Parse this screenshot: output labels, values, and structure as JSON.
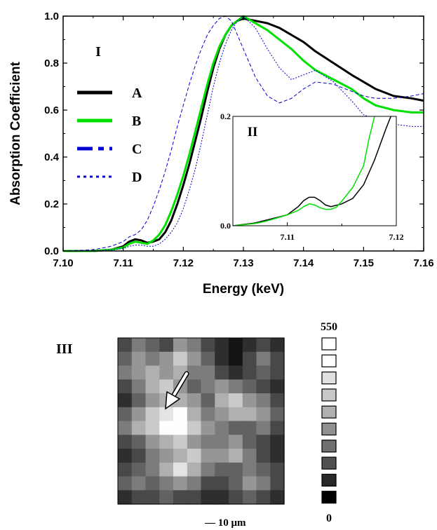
{
  "chart_data": [
    {
      "type": "line",
      "xlabel": "Energy (keV)",
      "ylabel": "Absorption Coefficient",
      "xlim": [
        7.1,
        7.16
      ],
      "ylim": [
        0.0,
        1.0
      ],
      "xticks": [
        7.1,
        7.11,
        7.12,
        7.13,
        7.14,
        7.15,
        7.16
      ],
      "yticks": [
        0.0,
        0.2,
        0.4,
        0.6,
        0.8,
        1.0
      ],
      "xtick_labels": [
        "7.10",
        "7.11",
        "7.12",
        "7.13",
        "7.14",
        "7.15",
        "7.16"
      ],
      "ytick_labels": [
        "0.0",
        "0.2",
        "0.4",
        "0.6",
        "0.8",
        "1.0"
      ],
      "panel_label": "I",
      "legend_position": "left",
      "series": [
        {
          "name": "A",
          "color": "#000000",
          "style": "solid-thick",
          "x": [
            7.1,
            7.105,
            7.108,
            7.11,
            7.111,
            7.112,
            7.113,
            7.114,
            7.115,
            7.116,
            7.117,
            7.118,
            7.119,
            7.12,
            7.121,
            7.122,
            7.123,
            7.124,
            7.125,
            7.126,
            7.127,
            7.128,
            7.129,
            7.13,
            7.132,
            7.134,
            7.136,
            7.138,
            7.14,
            7.142,
            7.145,
            7.148,
            7.15,
            7.152,
            7.155,
            7.158,
            7.16
          ],
          "y": [
            0.0,
            0.0,
            0.005,
            0.02,
            0.04,
            0.05,
            0.045,
            0.035,
            0.04,
            0.05,
            0.08,
            0.13,
            0.2,
            0.28,
            0.37,
            0.47,
            0.57,
            0.68,
            0.78,
            0.86,
            0.92,
            0.96,
            0.98,
            0.99,
            0.98,
            0.97,
            0.95,
            0.92,
            0.89,
            0.85,
            0.8,
            0.75,
            0.72,
            0.69,
            0.66,
            0.65,
            0.64
          ]
        },
        {
          "name": "B",
          "color": "#00e000",
          "style": "solid-thick",
          "x": [
            7.1,
            7.105,
            7.108,
            7.11,
            7.111,
            7.112,
            7.113,
            7.114,
            7.115,
            7.116,
            7.117,
            7.118,
            7.119,
            7.12,
            7.121,
            7.122,
            7.123,
            7.124,
            7.125,
            7.126,
            7.127,
            7.128,
            7.129,
            7.13,
            7.132,
            7.134,
            7.136,
            7.138,
            7.14,
            7.142,
            7.145,
            7.148,
            7.15,
            7.152,
            7.155,
            7.158,
            7.16
          ],
          "y": [
            0.0,
            0.0,
            0.005,
            0.015,
            0.03,
            0.04,
            0.035,
            0.03,
            0.045,
            0.07,
            0.11,
            0.17,
            0.24,
            0.32,
            0.41,
            0.51,
            0.61,
            0.71,
            0.8,
            0.87,
            0.92,
            0.96,
            0.98,
            1.0,
            0.97,
            0.94,
            0.9,
            0.86,
            0.81,
            0.77,
            0.73,
            0.69,
            0.65,
            0.62,
            0.6,
            0.59,
            0.59
          ]
        },
        {
          "name": "C",
          "color": "#0000d0",
          "style": "dash",
          "x": [
            7.1,
            7.105,
            7.108,
            7.11,
            7.111,
            7.112,
            7.113,
            7.114,
            7.115,
            7.116,
            7.117,
            7.118,
            7.119,
            7.12,
            7.121,
            7.122,
            7.123,
            7.124,
            7.125,
            7.126,
            7.127,
            7.128,
            7.13,
            7.132,
            7.134,
            7.136,
            7.138,
            7.14,
            7.142,
            7.145,
            7.148,
            7.15,
            7.152,
            7.155,
            7.158,
            7.16
          ],
          "y": [
            0.0,
            0.005,
            0.02,
            0.04,
            0.06,
            0.07,
            0.09,
            0.13,
            0.19,
            0.26,
            0.34,
            0.43,
            0.53,
            0.62,
            0.71,
            0.79,
            0.86,
            0.92,
            0.96,
            0.99,
            1.0,
            0.98,
            0.86,
            0.74,
            0.66,
            0.63,
            0.65,
            0.69,
            0.72,
            0.71,
            0.68,
            0.66,
            0.65,
            0.65,
            0.66,
            0.67
          ]
        },
        {
          "name": "D",
          "color": "#0000d0",
          "style": "dot",
          "x": [
            7.1,
            7.105,
            7.108,
            7.11,
            7.111,
            7.112,
            7.113,
            7.114,
            7.115,
            7.116,
            7.117,
            7.118,
            7.119,
            7.12,
            7.121,
            7.122,
            7.123,
            7.124,
            7.125,
            7.126,
            7.127,
            7.128,
            7.129,
            7.13,
            7.132,
            7.134,
            7.136,
            7.138,
            7.14,
            7.142,
            7.145,
            7.148,
            7.15,
            7.152,
            7.155,
            7.158,
            7.16
          ],
          "y": [
            0.0,
            0.0,
            0.005,
            0.01,
            0.02,
            0.025,
            0.025,
            0.02,
            0.02,
            0.03,
            0.05,
            0.08,
            0.12,
            0.18,
            0.26,
            0.35,
            0.46,
            0.58,
            0.7,
            0.8,
            0.88,
            0.94,
            0.98,
            1.0,
            0.95,
            0.86,
            0.78,
            0.73,
            0.75,
            0.77,
            0.72,
            0.64,
            0.58,
            0.56,
            0.54,
            0.53,
            0.53
          ]
        }
      ]
    },
    {
      "type": "line",
      "panel_label": "II",
      "xlim": [
        7.105,
        7.12
      ],
      "ylim": [
        0.0,
        0.2
      ],
      "xticks": [
        7.11,
        7.12
      ],
      "yticks": [
        0.0,
        0.2
      ],
      "xtick_labels": [
        "7.11",
        "7.12"
      ],
      "ytick_labels": [
        "0.0",
        "0.2"
      ],
      "series": [
        {
          "name": "A",
          "color": "#000000",
          "x": [
            7.105,
            7.107,
            7.108,
            7.109,
            7.11,
            7.111,
            7.1115,
            7.112,
            7.1125,
            7.113,
            7.1135,
            7.114,
            7.115,
            7.116,
            7.117,
            7.118,
            7.119,
            7.1195
          ],
          "y": [
            0.0,
            0.005,
            0.01,
            0.015,
            0.02,
            0.035,
            0.046,
            0.052,
            0.052,
            0.046,
            0.038,
            0.035,
            0.04,
            0.05,
            0.075,
            0.12,
            0.175,
            0.2
          ]
        },
        {
          "name": "B",
          "color": "#00e000",
          "x": [
            7.105,
            7.107,
            7.108,
            7.109,
            7.11,
            7.111,
            7.1115,
            7.112,
            7.1125,
            7.113,
            7.1135,
            7.114,
            7.1145,
            7.115,
            7.116,
            7.117,
            7.1175,
            7.118
          ],
          "y": [
            0.0,
            0.004,
            0.008,
            0.014,
            0.02,
            0.028,
            0.035,
            0.04,
            0.038,
            0.033,
            0.03,
            0.03,
            0.034,
            0.045,
            0.07,
            0.11,
            0.16,
            0.2
          ]
        }
      ]
    },
    {
      "type": "heatmap",
      "panel_label": "III",
      "scale_bar_label": "— 10 μm",
      "colorbar_max": "550",
      "colorbar_min": "0",
      "colorbar_levels": [
        "#ffffff",
        "#ffffff",
        "#e0e0e0",
        "#c8c8c8",
        "#b0b0b0",
        "#909090",
        "#707070",
        "#505050",
        "#282828",
        "#000000"
      ],
      "grid": [
        [
          2,
          4,
          3,
          2,
          5,
          4,
          2,
          1,
          0,
          1,
          2,
          1
        ],
        [
          3,
          5,
          4,
          5,
          7,
          5,
          3,
          1,
          0,
          2,
          4,
          2
        ],
        [
          4,
          5,
          6,
          5,
          6,
          4,
          4,
          2,
          1,
          2,
          3,
          2
        ],
        [
          2,
          4,
          6,
          7,
          5,
          3,
          4,
          5,
          4,
          3,
          2,
          1
        ],
        [
          1,
          3,
          5,
          6,
          6,
          5,
          3,
          6,
          7,
          5,
          4,
          2
        ],
        [
          3,
          5,
          7,
          8,
          9,
          6,
          4,
          5,
          6,
          6,
          5,
          3
        ],
        [
          4,
          6,
          7,
          9,
          9,
          7,
          5,
          4,
          3,
          3,
          4,
          2
        ],
        [
          2,
          3,
          5,
          6,
          7,
          5,
          4,
          4,
          5,
          3,
          2,
          1
        ],
        [
          1,
          2,
          4,
          5,
          6,
          7,
          5,
          5,
          6,
          4,
          2,
          1
        ],
        [
          2,
          3,
          4,
          6,
          8,
          6,
          4,
          3,
          3,
          4,
          3,
          2
        ],
        [
          3,
          4,
          3,
          4,
          5,
          4,
          2,
          2,
          3,
          5,
          4,
          2
        ],
        [
          1,
          2,
          2,
          3,
          2,
          2,
          1,
          1,
          2,
          3,
          2,
          1
        ]
      ]
    }
  ]
}
